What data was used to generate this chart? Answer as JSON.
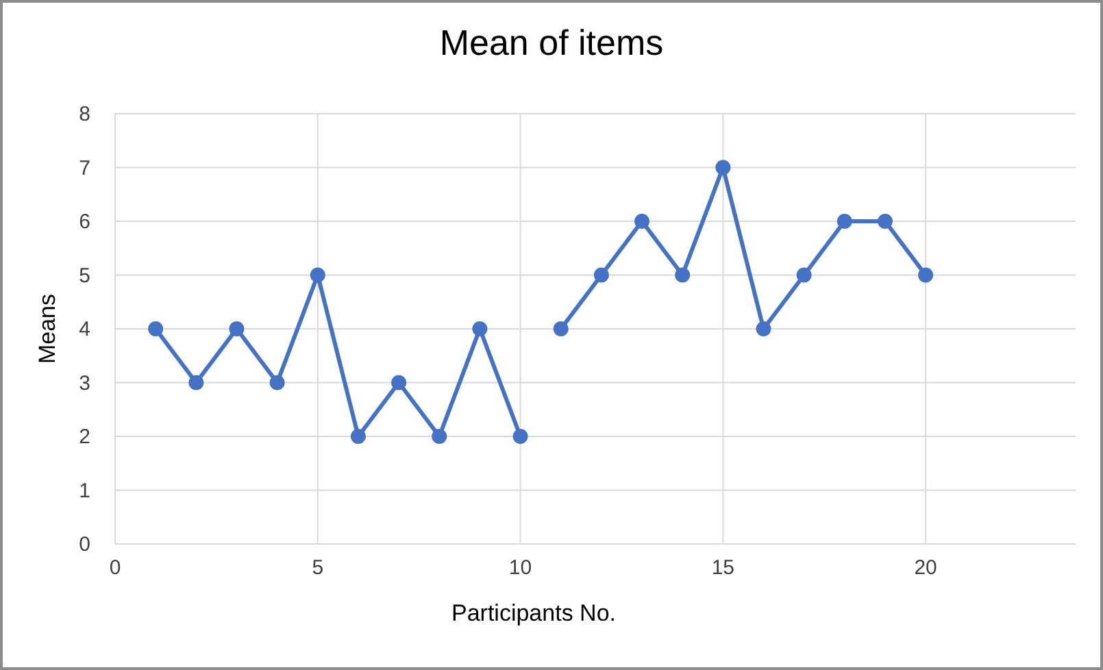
{
  "chart_data": {
    "type": "line",
    "title": "Mean of items",
    "xlabel": "Participants No.",
    "ylabel": "Means",
    "series": [
      {
        "color": "#4472c4",
        "x": [
          1,
          2,
          3,
          4,
          5,
          6,
          7,
          8,
          9,
          10
        ],
        "values": [
          4,
          3,
          4,
          3,
          5,
          2,
          3,
          2,
          4,
          2
        ]
      },
      {
        "color": "#4472c4",
        "x": [
          11,
          12,
          13,
          14,
          15,
          16,
          17,
          18,
          19,
          20
        ],
        "values": [
          4,
          5,
          6,
          5,
          7,
          4,
          5,
          6,
          6,
          5
        ]
      }
    ],
    "xlim": [
      0,
      23.7
    ],
    "xticks": [
      0,
      5,
      10,
      15,
      20
    ],
    "ylim": [
      0,
      8
    ],
    "yticks": [
      0,
      1,
      2,
      3,
      4,
      5,
      6,
      7,
      8
    ],
    "grid": true,
    "marker": "circle",
    "line_style": "solid"
  }
}
